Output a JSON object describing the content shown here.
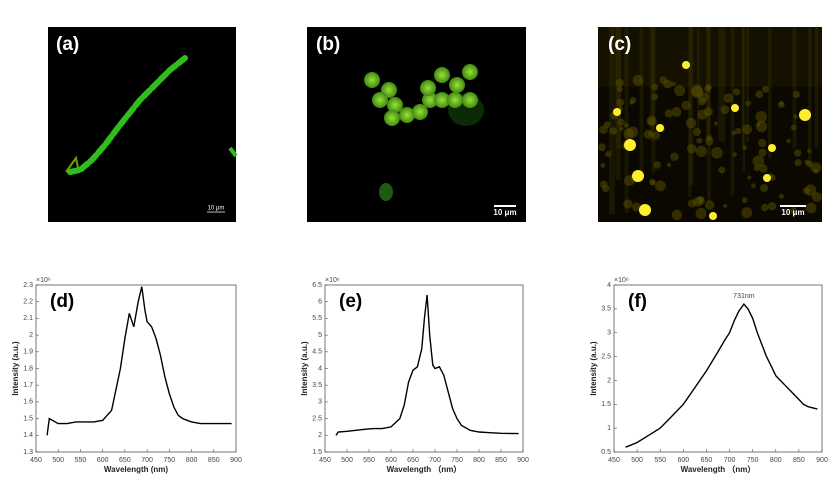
{
  "panels": [
    {
      "label": "(a)",
      "scale_bar": "10 μm"
    },
    {
      "label": "(b)",
      "scale_bar": "10 μm"
    },
    {
      "label": "(c)",
      "scale_bar": "10 μm"
    }
  ],
  "chart_data": [
    {
      "type": "line",
      "panel_label": "(d)",
      "y_multiplier": "×10⁶",
      "xlabel": "Wavelength (nm)",
      "ylabel": "Intensity (a.u.)",
      "xlim": [
        450,
        900
      ],
      "xticks": [
        450,
        500,
        550,
        600,
        650,
        700,
        750,
        800,
        850,
        900
      ],
      "ylim": [
        1.3,
        2.3
      ],
      "yticks": [
        1.3,
        1.4,
        1.5,
        1.6,
        1.7,
        1.8,
        1.9,
        2,
        2.1,
        2.2,
        2.3
      ],
      "color": "#000000",
      "x": [
        475,
        480,
        500,
        520,
        540,
        560,
        580,
        600,
        620,
        640,
        650,
        660,
        670,
        680,
        688,
        695,
        700,
        710,
        720,
        730,
        740,
        750,
        760,
        770,
        780,
        790,
        800,
        820,
        840,
        860,
        880,
        890
      ],
      "values": [
        1.4,
        1.5,
        1.47,
        1.47,
        1.48,
        1.48,
        1.48,
        1.49,
        1.55,
        1.8,
        1.98,
        2.13,
        2.05,
        2.2,
        2.29,
        2.15,
        2.08,
        2.05,
        1.98,
        1.88,
        1.75,
        1.65,
        1.57,
        1.52,
        1.5,
        1.49,
        1.48,
        1.47,
        1.47,
        1.47,
        1.47,
        1.47
      ]
    },
    {
      "type": "line",
      "panel_label": "(e)",
      "y_multiplier": "×10⁶",
      "xlabel": "Wavelength （nm）",
      "ylabel": "Intensity (a.u.)",
      "xlim": [
        450,
        900
      ],
      "xticks": [
        450,
        500,
        550,
        600,
        650,
        700,
        750,
        800,
        850,
        900
      ],
      "ylim": [
        1.5,
        6.5
      ],
      "yticks": [
        1.5,
        2,
        2.5,
        3,
        3.5,
        4,
        4.5,
        5,
        5.5,
        6,
        6.5
      ],
      "color": "#000000",
      "x": [
        475,
        480,
        500,
        520,
        540,
        560,
        580,
        600,
        620,
        630,
        640,
        650,
        660,
        670,
        676,
        682,
        688,
        695,
        700,
        710,
        720,
        730,
        740,
        750,
        760,
        780,
        800,
        820,
        850,
        890
      ],
      "values": [
        2.0,
        2.1,
        2.12,
        2.15,
        2.18,
        2.2,
        2.2,
        2.25,
        2.5,
        2.9,
        3.6,
        3.95,
        4.05,
        4.6,
        5.5,
        6.2,
        5.0,
        4.1,
        4.0,
        4.05,
        3.8,
        3.3,
        2.8,
        2.5,
        2.3,
        2.15,
        2.1,
        2.08,
        2.06,
        2.05
      ]
    },
    {
      "type": "line",
      "panel_label": "(f)",
      "y_multiplier": "×10⁶",
      "xlabel": "Wavelength （nm）",
      "ylabel": "Intensity (a.u.)",
      "annotation": "731nm",
      "xlim": [
        450,
        900
      ],
      "xticks": [
        450,
        500,
        550,
        600,
        650,
        700,
        750,
        800,
        850,
        900
      ],
      "ylim": [
        0.5,
        4
      ],
      "yticks": [
        0.5,
        1,
        1.5,
        2,
        2.5,
        3,
        3.5,
        4
      ],
      "color": "#000000",
      "x": [
        475,
        500,
        525,
        550,
        575,
        600,
        625,
        650,
        675,
        690,
        700,
        710,
        720,
        731,
        740,
        750,
        760,
        770,
        780,
        790,
        800,
        820,
        835,
        850,
        860,
        870,
        890
      ],
      "values": [
        0.6,
        0.7,
        0.85,
        1.0,
        1.25,
        1.5,
        1.85,
        2.2,
        2.6,
        2.85,
        3.0,
        3.25,
        3.45,
        3.6,
        3.5,
        3.3,
        3.0,
        2.75,
        2.5,
        2.3,
        2.1,
        1.9,
        1.75,
        1.6,
        1.5,
        1.45,
        1.4
      ]
    }
  ]
}
